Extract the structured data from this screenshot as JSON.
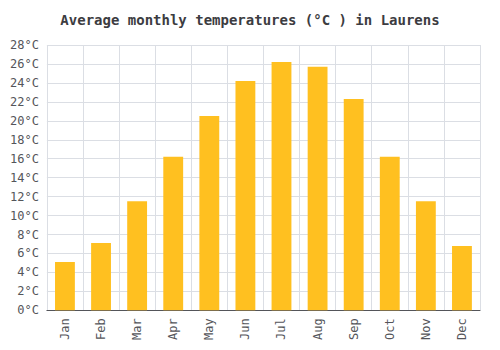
{
  "chart_data": {
    "type": "bar",
    "title": "Average monthly temperatures (°C ) in Laurens",
    "categories": [
      "Jan",
      "Feb",
      "Mar",
      "Apr",
      "May",
      "Jun",
      "Jul",
      "Aug",
      "Sep",
      "Oct",
      "Nov",
      "Dec"
    ],
    "values": [
      5.1,
      7.1,
      11.5,
      16.2,
      20.5,
      24.2,
      26.2,
      25.7,
      22.3,
      16.2,
      11.5,
      6.8
    ],
    "color": "#FFC020",
    "ylim": [
      0,
      28
    ],
    "yticks": [
      {
        "value": 0,
        "label": "0°C"
      },
      {
        "value": 2,
        "label": "2°C"
      },
      {
        "value": 4,
        "label": "4°C"
      },
      {
        "value": 6,
        "label": "6°C"
      },
      {
        "value": 8,
        "label": "8°C"
      },
      {
        "value": 10,
        "label": "10°C"
      },
      {
        "value": 12,
        "label": "12°C"
      },
      {
        "value": 14,
        "label": "14°C"
      },
      {
        "value": 16,
        "label": "16°C"
      },
      {
        "value": 18,
        "label": "18°C"
      },
      {
        "value": 20,
        "label": "20°C"
      },
      {
        "value": 22,
        "label": "22°C"
      },
      {
        "value": 24,
        "label": "24°C"
      },
      {
        "value": 26,
        "label": "26°C"
      },
      {
        "value": 28,
        "label": "28°C"
      }
    ],
    "grid": true
  }
}
